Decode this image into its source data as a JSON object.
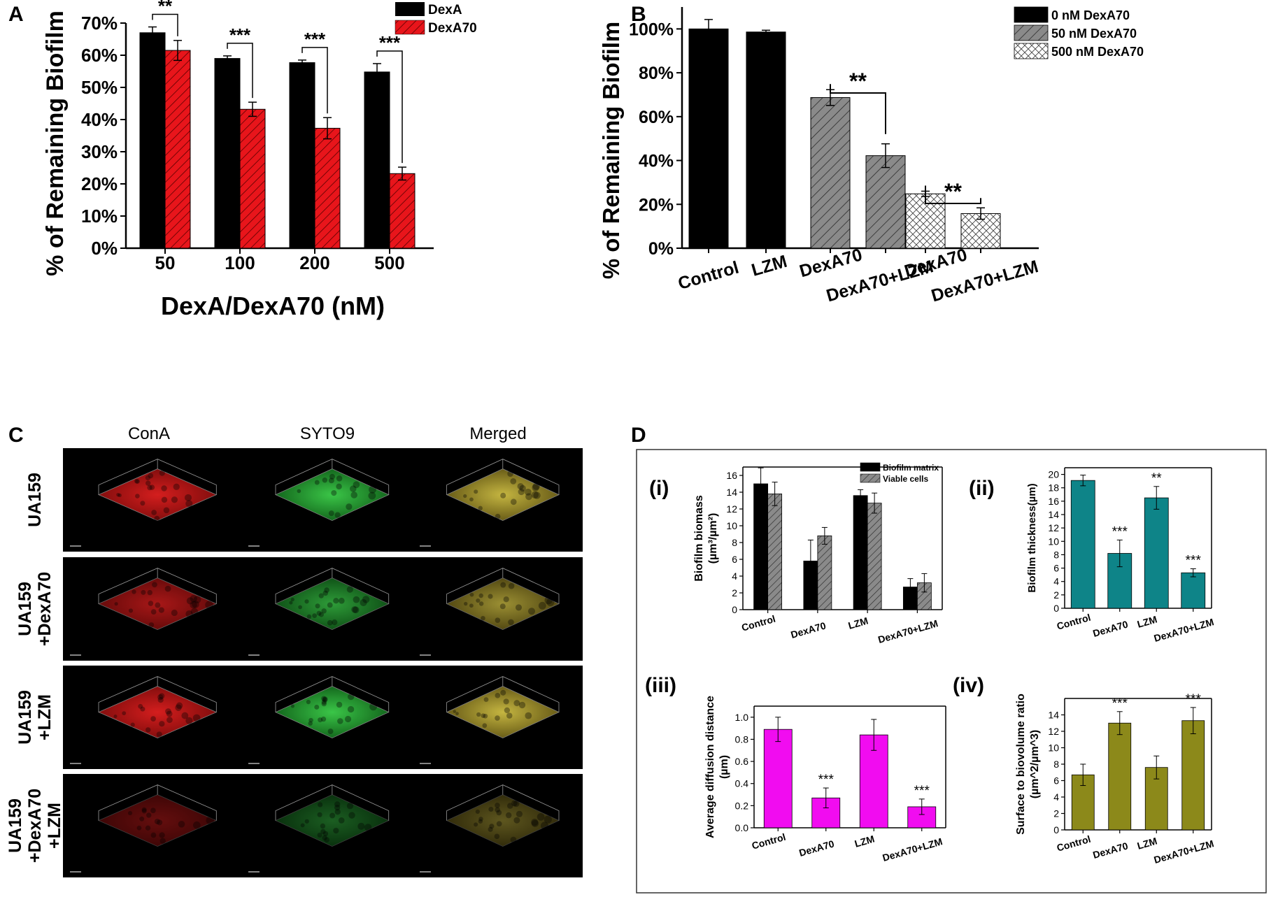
{
  "chart_data": [
    {
      "panel": "A",
      "type": "bar",
      "ylabel": "% of Remaining Biofilm",
      "xlabel": "DexA/DexA70 (nM)",
      "ylim": [
        0,
        70
      ],
      "yticks": [
        "0%",
        "10%",
        "20%",
        "30%",
        "40%",
        "50%",
        "60%",
        "70%"
      ],
      "categories": [
        "50",
        "100",
        "200",
        "500"
      ],
      "series": [
        {
          "name": "DexA",
          "color": "#000000",
          "values": [
            67,
            59,
            57.7,
            54.8
          ],
          "errors": [
            1.8,
            0.8,
            0.8,
            2.6
          ]
        },
        {
          "name": "DexA70",
          "color": "#e8151b",
          "values": [
            61.5,
            43.2,
            37.3,
            23.2
          ],
          "errors": [
            3.1,
            2.2,
            3.3,
            2.0
          ]
        }
      ],
      "annotations": [
        "**",
        "***",
        "***",
        "***"
      ]
    },
    {
      "panel": "B",
      "type": "bar",
      "ylabel": "% of Remaining Biofilm",
      "ylim": [
        0,
        110
      ],
      "yticks": [
        "0%",
        "20%",
        "40%",
        "60%",
        "80%",
        "100%"
      ],
      "categories": [
        "Control",
        "LZM",
        "DexA70",
        "DexA70+LZM",
        "DexA70",
        "DexA70+LZM"
      ],
      "values": [
        100,
        98.6,
        68.7,
        42.2,
        24.8,
        15.8
      ],
      "errors": [
        4.3,
        0.8,
        3.6,
        5.4,
        1.2,
        2.6
      ],
      "legend": [
        "0 nM DexA70",
        "50 nM DexA70",
        "500 nM DexA70"
      ],
      "annotations": [
        "**",
        "**"
      ]
    },
    {
      "panel": "D(i)",
      "type": "bar",
      "panel_label": "(i)",
      "ylabel_line1": "Biofilm biomass",
      "ylabel_line2": "(µm³/µm²)",
      "ylim": [
        0,
        17
      ],
      "yticks": [
        "0",
        "2",
        "4",
        "6",
        "8",
        "10",
        "12",
        "14",
        "16"
      ],
      "categories": [
        "Control",
        "DexA70",
        "LZM",
        "DexA70+LZM"
      ],
      "series": [
        {
          "name": "Biofilm matrix",
          "values": [
            15,
            5.8,
            13.6,
            2.7
          ],
          "errors": [
            1.9,
            2.5,
            0.7,
            1.0
          ]
        },
        {
          "name": "Viable cells",
          "values": [
            13.8,
            8.8,
            12.7,
            3.2
          ],
          "errors": [
            1.4,
            1.0,
            1.2,
            1.1
          ]
        }
      ]
    },
    {
      "panel": "D(ii)",
      "type": "bar",
      "panel_label": "(ii)",
      "ylabel": "Biofilm thickness(µm)",
      "ylim": [
        0,
        21
      ],
      "yticks": [
        "0",
        "2",
        "4",
        "6",
        "8",
        "10",
        "12",
        "14",
        "16",
        "18",
        "20"
      ],
      "categories": [
        "Control",
        "DexA70",
        "LZM",
        "DexA70+LZM"
      ],
      "values": [
        19.1,
        8.2,
        16.5,
        5.3
      ],
      "errors": [
        0.8,
        2.0,
        1.7,
        0.6
      ],
      "annotations": [
        "",
        "***",
        "**",
        "***"
      ]
    },
    {
      "panel": "D(iii)",
      "type": "bar",
      "panel_label": "(iii)",
      "ylabel_line1": "Average diffusion distance",
      "ylabel_line2": "(µm)",
      "ylim": [
        0,
        1.1
      ],
      "yticks": [
        "0.0",
        "0.2",
        "0.4",
        "0.6",
        "0.8",
        "1.0"
      ],
      "categories": [
        "Control",
        "DexA70",
        "LZM",
        "DexA70+LZM"
      ],
      "values": [
        0.89,
        0.27,
        0.84,
        0.19
      ],
      "errors": [
        0.11,
        0.09,
        0.14,
        0.07
      ],
      "annotations": [
        "",
        "***",
        "",
        "***"
      ]
    },
    {
      "panel": "D(iv)",
      "type": "bar",
      "panel_label": "(iv)",
      "ylabel_line1": "Surface to biovolume ratio",
      "ylabel_line2": "(µm^2/µm^3)",
      "ylim": [
        0,
        16
      ],
      "yticks": [
        "0",
        "2",
        "4",
        "6",
        "8",
        "10",
        "12",
        "14"
      ],
      "categories": [
        "Control",
        "DexA70",
        "LZM",
        "DexA70+LZM"
      ],
      "values": [
        6.7,
        13,
        7.6,
        13.3
      ],
      "errors": [
        1.3,
        1.4,
        1.4,
        1.6
      ],
      "annotations": [
        "",
        "***",
        "",
        "***"
      ]
    }
  ],
  "figure": {
    "panel_letters": [
      "A",
      "B",
      "C",
      "D"
    ],
    "microscopy": {
      "columns": [
        "ConA",
        "SYTO9",
        "Merged"
      ],
      "rows": [
        "UA159",
        "UA159\n+DexA70",
        "UA159\n+LZM",
        "UA159\n+DexA70\n+LZM"
      ]
    }
  },
  "colors": {
    "dexA": "#000000",
    "dexA70": "#e8151b",
    "teal": "#0e8488",
    "magenta": "#f10cf0",
    "olive": "#8c891a",
    "conA": "#d41e1e",
    "syto9": "#22c035",
    "merged": "#b0a23a"
  }
}
